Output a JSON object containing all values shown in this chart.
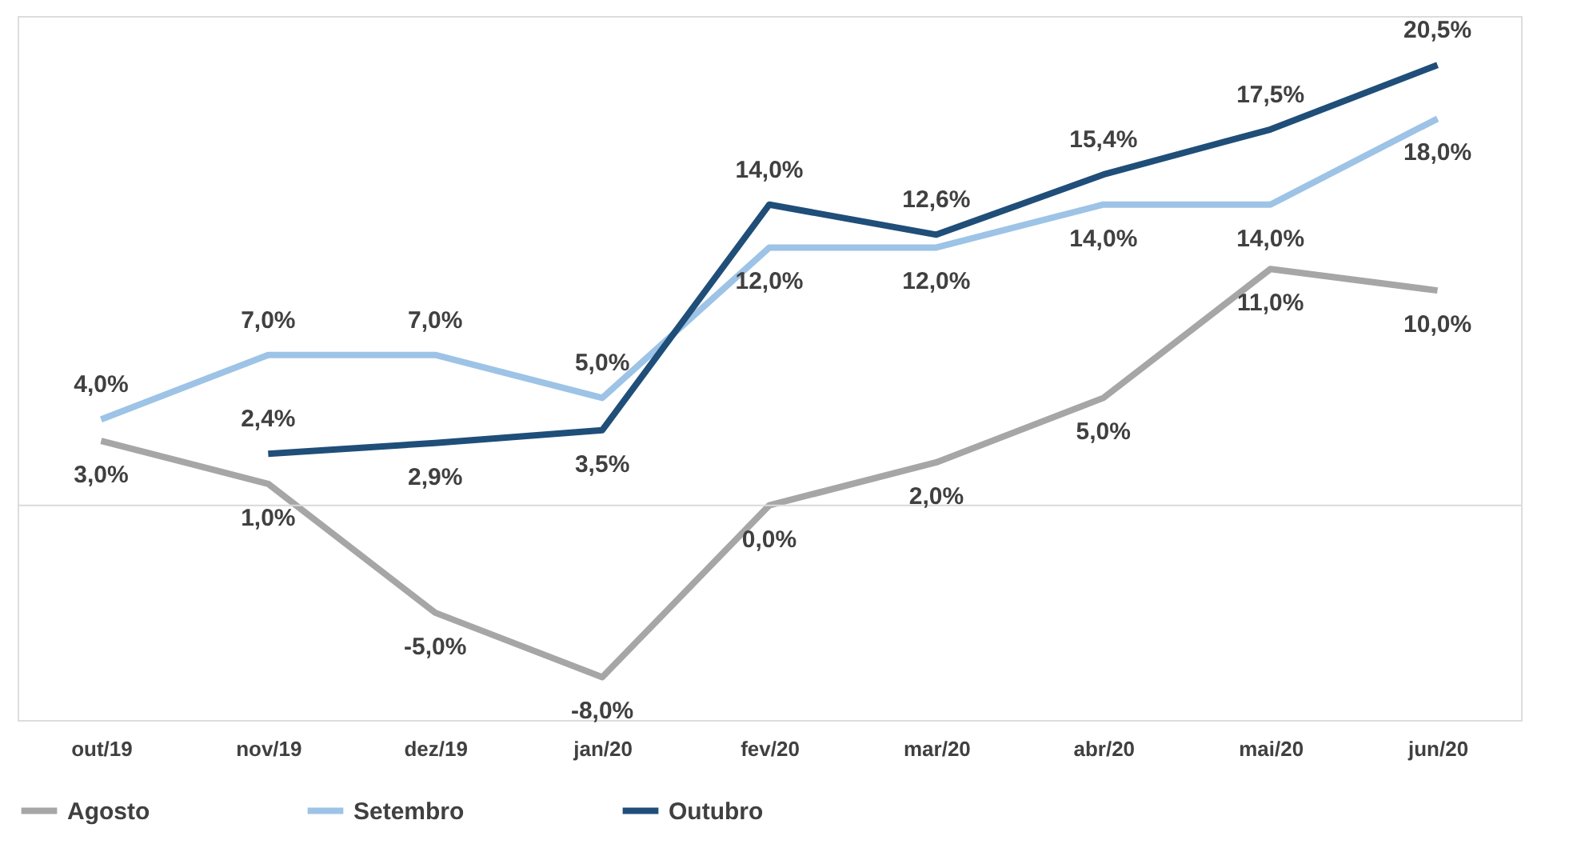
{
  "chart_data": {
    "type": "line",
    "categories": [
      "out/19",
      "nov/19",
      "dez/19",
      "jan/20",
      "fev/20",
      "mar/20",
      "abr/20",
      "mai/20",
      "jun/20"
    ],
    "series": [
      {
        "name": "Agosto",
        "color": "#a6a6a6",
        "values": [
          3.0,
          1.0,
          -5.0,
          -8.0,
          0.0,
          2.0,
          5.0,
          11.0,
          10.0
        ],
        "value_labels": [
          "3,0%",
          "1,0%",
          "-5,0%",
          "-8,0%",
          "0,0%",
          "2,0%",
          "5,0%",
          "11,0%",
          "10,0%"
        ]
      },
      {
        "name": "Setembro",
        "color": "#9dc3e6",
        "values": [
          4.0,
          7.0,
          7.0,
          5.0,
          12.0,
          12.0,
          14.0,
          14.0,
          18.0
        ],
        "value_labels": [
          "4,0%",
          "7,0%",
          "7,0%",
          "5,0%",
          "12,0%",
          "12,0%",
          "14,0%",
          "14,0%",
          "18,0%"
        ]
      },
      {
        "name": "Outubro",
        "color": "#1f4e79",
        "values": [
          null,
          2.4,
          2.9,
          3.5,
          14.0,
          12.6,
          15.4,
          17.5,
          20.5
        ],
        "value_labels": [
          null,
          "2,4%",
          "2,9%",
          "3,5%",
          "14,0%",
          "12,6%",
          "15,4%",
          "17,5%",
          "20,5%"
        ]
      }
    ],
    "tick_labels": "x",
    "legend": "bottom",
    "line_style": "solid"
  }
}
